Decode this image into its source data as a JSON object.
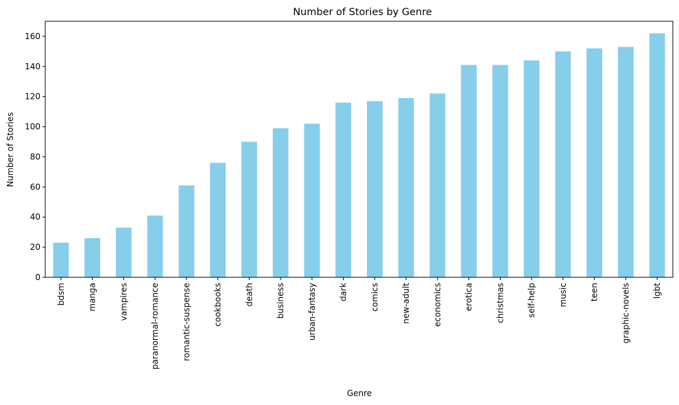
{
  "chart_data": {
    "type": "bar",
    "title": "Number of Stories by Genre",
    "xlabel": "Genre",
    "ylabel": "Number of Stories",
    "ylim": [
      0,
      170
    ],
    "yticks": [
      0,
      20,
      40,
      60,
      80,
      100,
      120,
      140,
      160
    ],
    "grid": false,
    "bar_color": "#87ceeb",
    "categories": [
      "bdsm",
      "manga",
      "vampires",
      "paranormal-romance",
      "romantic-suspense",
      "cookbooks",
      "death",
      "business",
      "urban-fantasy",
      "dark",
      "comics",
      "new-adult",
      "economics",
      "erotica",
      "christmas",
      "self-help",
      "music",
      "teen",
      "graphic-novels",
      "lgbt"
    ],
    "values": [
      23,
      26,
      33,
      41,
      61,
      76,
      90,
      99,
      102,
      116,
      117,
      119,
      122,
      141,
      141,
      144,
      150,
      152,
      153,
      162
    ]
  }
}
